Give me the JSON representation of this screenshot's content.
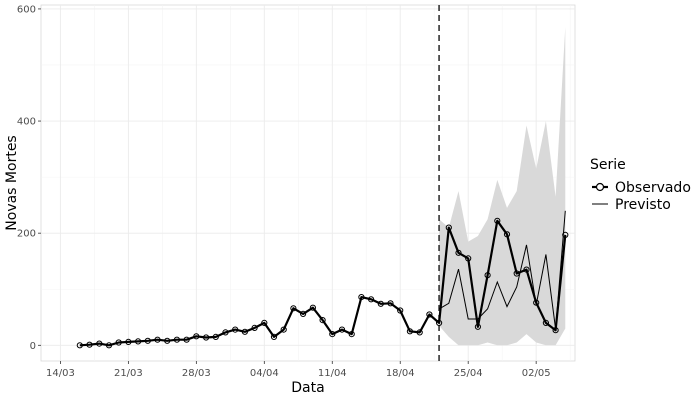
{
  "chart_data": {
    "type": "line",
    "xlabel": "Data",
    "ylabel": "Novas Mortes",
    "x_tick_labels": [
      "14/03",
      "21/03",
      "28/03",
      "04/04",
      "11/04",
      "18/04",
      "25/04",
      "02/05"
    ],
    "y_tick_labels": [
      "0",
      "200",
      "400",
      "600"
    ],
    "y_ticks": [
      0,
      200,
      400,
      600
    ],
    "ylim": [
      -28,
      607
    ],
    "x_dates_start": "2020-03-12",
    "x_dates_end": "2020-05-06",
    "forecast_start": "2020-04-22",
    "grid": true,
    "legend": {
      "title": "Serie",
      "placement": "right",
      "entries": [
        "Observado",
        "Previsto"
      ]
    },
    "series": [
      {
        "name": "Observado",
        "style": "thick line with circle markers",
        "color": "#000000",
        "x": [
          "2020-03-16",
          "2020-03-17",
          "2020-03-18",
          "2020-03-19",
          "2020-03-20",
          "2020-03-21",
          "2020-03-22",
          "2020-03-23",
          "2020-03-24",
          "2020-03-25",
          "2020-03-26",
          "2020-03-27",
          "2020-03-28",
          "2020-03-29",
          "2020-03-30",
          "2020-03-31",
          "2020-04-01",
          "2020-04-02",
          "2020-04-03",
          "2020-04-04",
          "2020-04-05",
          "2020-04-06",
          "2020-04-07",
          "2020-04-08",
          "2020-04-09",
          "2020-04-10",
          "2020-04-11",
          "2020-04-12",
          "2020-04-13",
          "2020-04-14",
          "2020-04-15",
          "2020-04-16",
          "2020-04-17",
          "2020-04-18",
          "2020-04-19",
          "2020-04-20",
          "2020-04-21",
          "2020-04-22",
          "2020-04-23",
          "2020-04-24",
          "2020-04-25",
          "2020-04-26",
          "2020-04-27",
          "2020-04-28",
          "2020-04-29",
          "2020-04-30",
          "2020-05-01",
          "2020-05-02",
          "2020-05-03",
          "2020-05-04",
          "2020-05-05"
        ],
        "y": [
          0,
          1,
          3,
          0,
          5,
          6,
          7,
          8,
          10,
          8,
          10,
          10,
          16,
          14,
          15,
          23,
          28,
          24,
          31,
          40,
          15,
          28,
          66,
          56,
          67,
          45,
          20,
          28,
          20,
          86,
          82,
          74,
          75,
          62,
          25,
          23,
          55,
          40,
          210,
          165,
          155,
          33,
          125,
          222,
          198,
          128,
          135,
          76,
          40,
          27,
          197
        ]
      },
      {
        "name": "Previsto",
        "style": "thin line",
        "color": "#000000",
        "x": [
          "2020-04-22",
          "2020-04-23",
          "2020-04-24",
          "2020-04-25",
          "2020-04-26",
          "2020-04-27",
          "2020-04-28",
          "2020-04-29",
          "2020-04-30",
          "2020-05-01",
          "2020-05-02",
          "2020-05-03",
          "2020-05-04",
          "2020-05-05"
        ],
        "y": [
          65,
          75,
          136,
          47,
          47,
          65,
          113,
          69,
          104,
          179,
          72,
          162,
          29,
          240
        ]
      }
    ],
    "confidence_band": {
      "color": "#d9d9d9",
      "x": [
        "2020-04-22",
        "2020-04-23",
        "2020-04-24",
        "2020-04-25",
        "2020-04-26",
        "2020-04-27",
        "2020-04-28",
        "2020-04-29",
        "2020-04-30",
        "2020-05-01",
        "2020-05-02",
        "2020-05-03",
        "2020-05-04",
        "2020-05-05"
      ],
      "lower": [
        35,
        15,
        0,
        0,
        0,
        5,
        0,
        0,
        5,
        20,
        5,
        0,
        0,
        30
      ],
      "upper": [
        225,
        210,
        275,
        185,
        195,
        225,
        295,
        245,
        275,
        392,
        315,
        400,
        265,
        568
      ]
    }
  }
}
